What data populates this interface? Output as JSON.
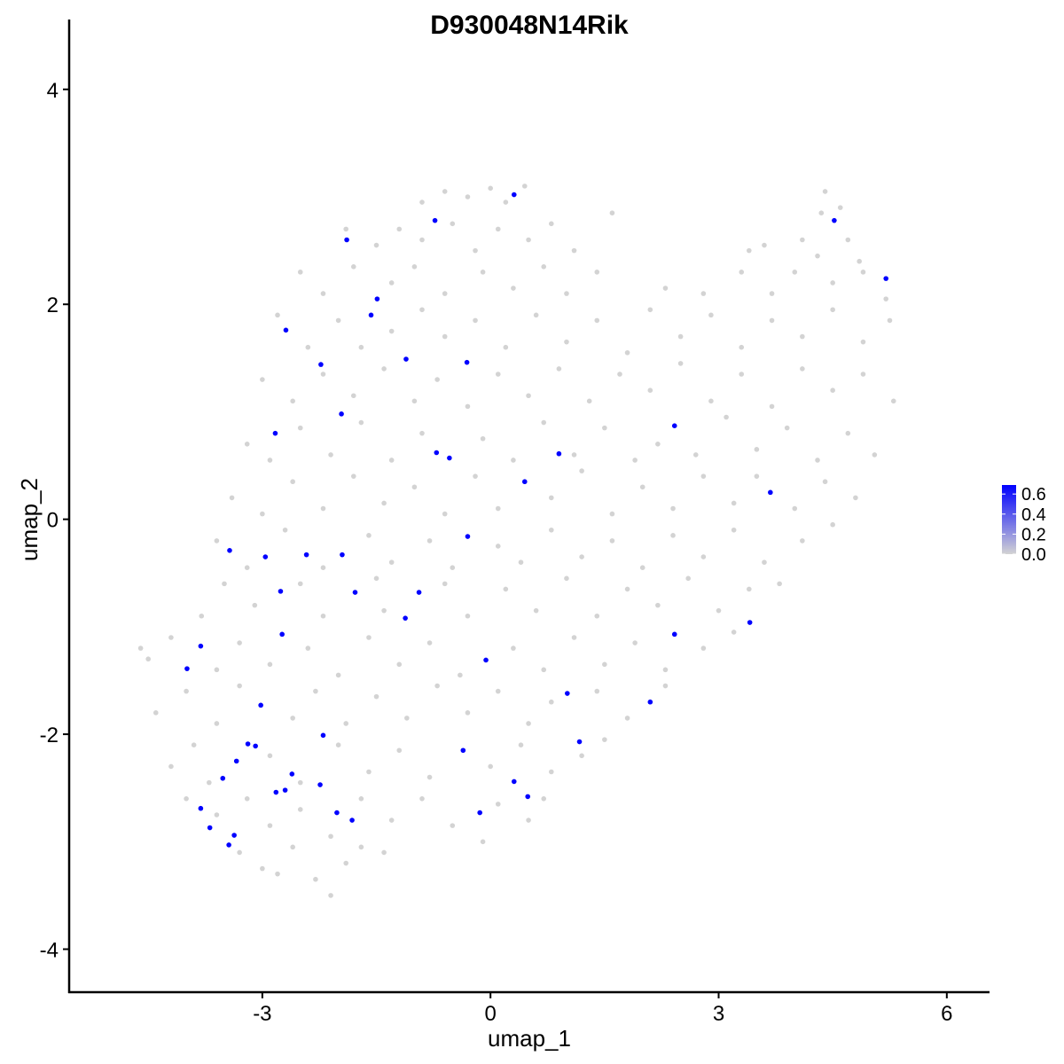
{
  "chart_data": {
    "type": "scatter",
    "title": "D930048N14Rik",
    "xlabel": "umap_1",
    "ylabel": "umap_2",
    "xlim": [
      -5.54,
      6.55
    ],
    "ylim": [
      -4.4,
      4.65
    ],
    "xticks": [
      -3,
      0,
      3,
      6
    ],
    "yticks": [
      -4,
      -2,
      0,
      2,
      4
    ],
    "xtick_labels": [
      "-3",
      "0",
      "3",
      "6"
    ],
    "ytick_labels": [
      "-4",
      "-2",
      "0",
      "2",
      "4"
    ],
    "grid": false,
    "legend": {
      "placement": "right",
      "ticks": [
        "0.6",
        "0.4",
        "0.2",
        "0.0"
      ],
      "range": [
        0,
        0.69
      ],
      "low_color": "#d3d3d3",
      "high_color": "#0000ff"
    },
    "expressed_color": "#0000ff",
    "background_color": "#d3d3d3",
    "expressed_points": [
      [
        0.31,
        3.02
      ],
      [
        -0.73,
        2.78
      ],
      [
        -1.89,
        2.6
      ],
      [
        4.52,
        2.78
      ],
      [
        5.2,
        2.24
      ],
      [
        -1.49,
        2.05
      ],
      [
        -1.57,
        1.9
      ],
      [
        -2.69,
        1.76
      ],
      [
        -1.11,
        1.49
      ],
      [
        -0.31,
        1.46
      ],
      [
        -2.23,
        1.44
      ],
      [
        -1.96,
        0.98
      ],
      [
        -2.83,
        0.8
      ],
      [
        2.42,
        0.87
      ],
      [
        -0.71,
        0.62
      ],
      [
        -0.54,
        0.57
      ],
      [
        0.9,
        0.61
      ],
      [
        0.45,
        0.35
      ],
      [
        3.68,
        0.25
      ],
      [
        -0.3,
        -0.16
      ],
      [
        -3.43,
        -0.29
      ],
      [
        -2.96,
        -0.35
      ],
      [
        -2.42,
        -0.33
      ],
      [
        -1.95,
        -0.33
      ],
      [
        -2.76,
        -0.67
      ],
      [
        -1.78,
        -0.68
      ],
      [
        -0.94,
        -0.68
      ],
      [
        -1.12,
        -0.92
      ],
      [
        3.41,
        -0.96
      ],
      [
        -2.74,
        -1.07
      ],
      [
        2.42,
        -1.07
      ],
      [
        -3.81,
        -1.18
      ],
      [
        -3.99,
        -1.39
      ],
      [
        -0.06,
        -1.31
      ],
      [
        1.01,
        -1.62
      ],
      [
        -3.02,
        -1.73
      ],
      [
        2.1,
        -1.7
      ],
      [
        -2.2,
        -2.01
      ],
      [
        1.17,
        -2.07
      ],
      [
        -3.19,
        -2.09
      ],
      [
        -3.09,
        -2.11
      ],
      [
        -0.36,
        -2.15
      ],
      [
        -3.34,
        -2.25
      ],
      [
        -2.61,
        -2.37
      ],
      [
        -3.52,
        -2.41
      ],
      [
        -2.24,
        -2.47
      ],
      [
        0.31,
        -2.44
      ],
      [
        -2.7,
        -2.52
      ],
      [
        -2.82,
        -2.54
      ],
      [
        0.49,
        -2.58
      ],
      [
        -3.81,
        -2.69
      ],
      [
        -2.02,
        -2.73
      ],
      [
        -0.14,
        -2.73
      ],
      [
        -1.82,
        -2.8
      ],
      [
        -3.69,
        -2.87
      ],
      [
        -3.37,
        -2.94
      ],
      [
        -3.44,
        -3.03
      ]
    ],
    "expressed_value": 0.69,
    "background_points": [
      [
        -0.6,
        3.05
      ],
      [
        -0.3,
        3.0
      ],
      [
        0.0,
        3.08
      ],
      [
        0.2,
        2.95
      ],
      [
        0.45,
        3.1
      ],
      [
        -0.9,
        2.95
      ],
      [
        4.4,
        3.05
      ],
      [
        4.6,
        2.9
      ],
      [
        4.35,
        2.85
      ],
      [
        -1.9,
        2.7
      ],
      [
        -1.5,
        2.55
      ],
      [
        -1.2,
        2.7
      ],
      [
        -0.9,
        2.6
      ],
      [
        -0.5,
        2.75
      ],
      [
        -0.2,
        2.5
      ],
      [
        0.1,
        2.7
      ],
      [
        0.5,
        2.6
      ],
      [
        0.8,
        2.75
      ],
      [
        1.1,
        2.5
      ],
      [
        1.6,
        2.85
      ],
      [
        4.1,
        2.6
      ],
      [
        4.3,
        2.45
      ],
      [
        4.7,
        2.6
      ],
      [
        4.85,
        2.4
      ],
      [
        3.4,
        2.5
      ],
      [
        3.6,
        2.55
      ],
      [
        -2.5,
        2.3
      ],
      [
        -2.2,
        2.1
      ],
      [
        -1.8,
        2.35
      ],
      [
        -1.3,
        2.2
      ],
      [
        -1.0,
        2.35
      ],
      [
        -0.6,
        2.1
      ],
      [
        -0.1,
        2.3
      ],
      [
        0.3,
        2.15
      ],
      [
        0.7,
        2.35
      ],
      [
        1.0,
        2.1
      ],
      [
        1.4,
        2.3
      ],
      [
        3.3,
        2.3
      ],
      [
        3.7,
        2.1
      ],
      [
        4.0,
        2.3
      ],
      [
        4.5,
        2.2
      ],
      [
        4.9,
        2.3
      ],
      [
        5.2,
        2.05
      ],
      [
        2.8,
        2.1
      ],
      [
        2.3,
        2.15
      ],
      [
        -2.8,
        1.9
      ],
      [
        -2.4,
        1.6
      ],
      [
        -2.0,
        1.85
      ],
      [
        -1.7,
        1.6
      ],
      [
        -1.3,
        1.75
      ],
      [
        -0.9,
        1.95
      ],
      [
        -0.6,
        1.7
      ],
      [
        -0.2,
        1.85
      ],
      [
        0.2,
        1.6
      ],
      [
        0.6,
        1.9
      ],
      [
        1.0,
        1.65
      ],
      [
        1.4,
        1.85
      ],
      [
        1.8,
        1.55
      ],
      [
        2.1,
        1.95
      ],
      [
        2.5,
        1.7
      ],
      [
        2.9,
        1.9
      ],
      [
        3.3,
        1.6
      ],
      [
        3.7,
        1.85
      ],
      [
        4.1,
        1.7
      ],
      [
        4.5,
        1.95
      ],
      [
        4.9,
        1.65
      ],
      [
        5.25,
        1.85
      ],
      [
        -3.0,
        1.3
      ],
      [
        -2.6,
        1.1
      ],
      [
        -2.2,
        1.35
      ],
      [
        -1.8,
        1.15
      ],
      [
        -1.4,
        1.4
      ],
      [
        -1.0,
        1.1
      ],
      [
        -0.7,
        1.3
      ],
      [
        -0.3,
        1.05
      ],
      [
        0.1,
        1.35
      ],
      [
        0.5,
        1.15
      ],
      [
        0.9,
        1.4
      ],
      [
        1.3,
        1.1
      ],
      [
        1.7,
        1.35
      ],
      [
        2.1,
        1.2
      ],
      [
        2.5,
        1.45
      ],
      [
        2.9,
        1.1
      ],
      [
        3.3,
        1.35
      ],
      [
        3.7,
        1.05
      ],
      [
        4.1,
        1.4
      ],
      [
        4.5,
        1.2
      ],
      [
        4.9,
        1.35
      ],
      [
        5.3,
        1.1
      ],
      [
        -3.2,
        0.7
      ],
      [
        -2.9,
        0.55
      ],
      [
        -2.5,
        0.85
      ],
      [
        -2.1,
        0.6
      ],
      [
        -1.7,
        0.9
      ],
      [
        -1.3,
        0.55
      ],
      [
        -0.9,
        0.8
      ],
      [
        -0.1,
        0.75
      ],
      [
        0.3,
        0.55
      ],
      [
        0.7,
        0.9
      ],
      [
        1.1,
        0.6
      ],
      [
        1.5,
        0.85
      ],
      [
        1.9,
        0.55
      ],
      [
        2.2,
        0.7
      ],
      [
        2.7,
        0.6
      ],
      [
        3.1,
        0.95
      ],
      [
        3.5,
        0.65
      ],
      [
        3.9,
        0.85
      ],
      [
        4.3,
        0.55
      ],
      [
        4.7,
        0.8
      ],
      [
        5.05,
        0.6
      ],
      [
        -3.4,
        0.2
      ],
      [
        -3.0,
        0.05
      ],
      [
        -2.6,
        0.35
      ],
      [
        -2.2,
        0.1
      ],
      [
        -1.8,
        0.4
      ],
      [
        -1.4,
        0.15
      ],
      [
        -1.0,
        0.3
      ],
      [
        -0.6,
        0.05
      ],
      [
        -0.2,
        0.4
      ],
      [
        0.1,
        0.1
      ],
      [
        0.8,
        0.2
      ],
      [
        1.2,
        0.45
      ],
      [
        1.6,
        0.05
      ],
      [
        2.0,
        0.3
      ],
      [
        2.4,
        0.1
      ],
      [
        2.8,
        0.4
      ],
      [
        3.2,
        0.15
      ],
      [
        3.5,
        0.4
      ],
      [
        4.0,
        0.1
      ],
      [
        4.4,
        0.35
      ],
      [
        4.8,
        0.2
      ],
      [
        -3.6,
        -0.2
      ],
      [
        -3.2,
        -0.45
      ],
      [
        -2.7,
        -0.1
      ],
      [
        -2.2,
        -0.45
      ],
      [
        -1.6,
        -0.15
      ],
      [
        -1.3,
        -0.4
      ],
      [
        -0.8,
        -0.2
      ],
      [
        -0.5,
        -0.45
      ],
      [
        0.1,
        -0.25
      ],
      [
        0.4,
        -0.4
      ],
      [
        0.8,
        -0.1
      ],
      [
        1.2,
        -0.35
      ],
      [
        1.6,
        -0.2
      ],
      [
        2.0,
        -0.45
      ],
      [
        2.4,
        -0.15
      ],
      [
        2.8,
        -0.35
      ],
      [
        3.2,
        -0.1
      ],
      [
        3.6,
        -0.4
      ],
      [
        4.1,
        -0.2
      ],
      [
        4.5,
        -0.05
      ],
      [
        -3.8,
        -0.9
      ],
      [
        -3.5,
        -0.6
      ],
      [
        -3.1,
        -0.8
      ],
      [
        -2.5,
        -0.6
      ],
      [
        -2.2,
        -0.9
      ],
      [
        -1.5,
        -0.55
      ],
      [
        -1.4,
        -0.85
      ],
      [
        -0.6,
        -0.6
      ],
      [
        -0.3,
        -0.9
      ],
      [
        0.2,
        -0.65
      ],
      [
        0.6,
        -0.85
      ],
      [
        1.0,
        -0.55
      ],
      [
        1.4,
        -0.9
      ],
      [
        1.8,
        -0.65
      ],
      [
        2.2,
        -0.8
      ],
      [
        2.6,
        -0.55
      ],
      [
        3.0,
        -0.85
      ],
      [
        3.4,
        -0.65
      ],
      [
        3.8,
        -0.6
      ],
      [
        -4.6,
        -1.2
      ],
      [
        -4.5,
        -1.3
      ],
      [
        -4.2,
        -1.1
      ],
      [
        -3.6,
        -1.4
      ],
      [
        -3.3,
        -1.15
      ],
      [
        -2.9,
        -1.35
      ],
      [
        -2.4,
        -1.2
      ],
      [
        -2.0,
        -1.45
      ],
      [
        -1.6,
        -1.1
      ],
      [
        -1.2,
        -1.35
      ],
      [
        -0.8,
        -1.15
      ],
      [
        -0.4,
        -1.45
      ],
      [
        0.3,
        -1.2
      ],
      [
        0.7,
        -1.4
      ],
      [
        1.1,
        -1.1
      ],
      [
        1.5,
        -1.35
      ],
      [
        1.9,
        -1.15
      ],
      [
        2.3,
        -1.4
      ],
      [
        2.8,
        -1.2
      ],
      [
        3.2,
        -1.05
      ],
      [
        -4.4,
        -1.8
      ],
      [
        -4.0,
        -1.6
      ],
      [
        -3.6,
        -1.9
      ],
      [
        -3.3,
        -1.55
      ],
      [
        -2.6,
        -1.85
      ],
      [
        -2.3,
        -1.6
      ],
      [
        -1.9,
        -1.9
      ],
      [
        -1.5,
        -1.65
      ],
      [
        -1.1,
        -1.85
      ],
      [
        -0.7,
        -1.55
      ],
      [
        -0.3,
        -1.8
      ],
      [
        0.1,
        -1.6
      ],
      [
        0.5,
        -1.9
      ],
      [
        0.8,
        -1.7
      ],
      [
        1.4,
        -1.6
      ],
      [
        1.8,
        -1.85
      ],
      [
        2.3,
        -1.55
      ],
      [
        -4.2,
        -2.3
      ],
      [
        -3.9,
        -2.1
      ],
      [
        -3.7,
        -2.45
      ],
      [
        -2.9,
        -2.2
      ],
      [
        -2.5,
        -2.45
      ],
      [
        -2.0,
        -2.1
      ],
      [
        -1.6,
        -2.35
      ],
      [
        -1.2,
        -2.15
      ],
      [
        -0.8,
        -2.4
      ],
      [
        0.0,
        -2.3
      ],
      [
        0.4,
        -2.1
      ],
      [
        0.8,
        -2.35
      ],
      [
        1.2,
        -2.2
      ],
      [
        1.5,
        -2.05
      ],
      [
        -4.0,
        -2.6
      ],
      [
        -3.6,
        -2.75
      ],
      [
        -3.2,
        -2.6
      ],
      [
        -2.9,
        -2.85
      ],
      [
        -2.5,
        -2.7
      ],
      [
        -2.1,
        -2.95
      ],
      [
        -1.7,
        -2.6
      ],
      [
        -1.3,
        -2.8
      ],
      [
        -0.9,
        -2.6
      ],
      [
        -0.5,
        -2.85
      ],
      [
        0.1,
        -2.65
      ],
      [
        0.5,
        -2.8
      ],
      [
        0.7,
        -2.6
      ],
      [
        -3.3,
        -3.1
      ],
      [
        -3.0,
        -3.25
      ],
      [
        -2.6,
        -3.05
      ],
      [
        -2.3,
        -3.35
      ],
      [
        -2.1,
        -3.5
      ],
      [
        -1.9,
        -3.2
      ],
      [
        -1.7,
        -3.05
      ],
      [
        -1.4,
        -3.1
      ],
      [
        -0.1,
        -3.0
      ],
      [
        -2.8,
        -3.3
      ]
    ]
  }
}
